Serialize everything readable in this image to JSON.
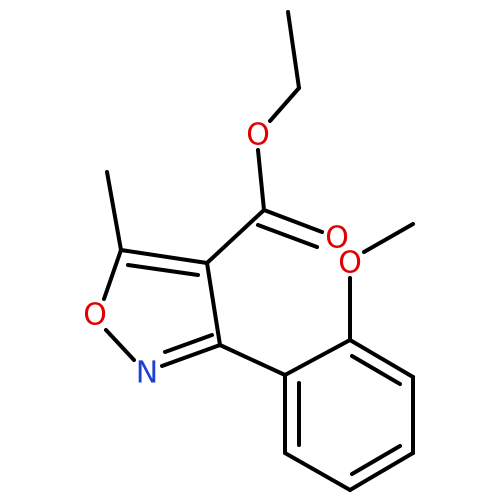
{
  "atoms": [
    {
      "label": "O"
    },
    {
      "label": "O"
    },
    {
      "label": "O"
    },
    {
      "label": "O"
    },
    {
      "label": "N"
    }
  ]
}
